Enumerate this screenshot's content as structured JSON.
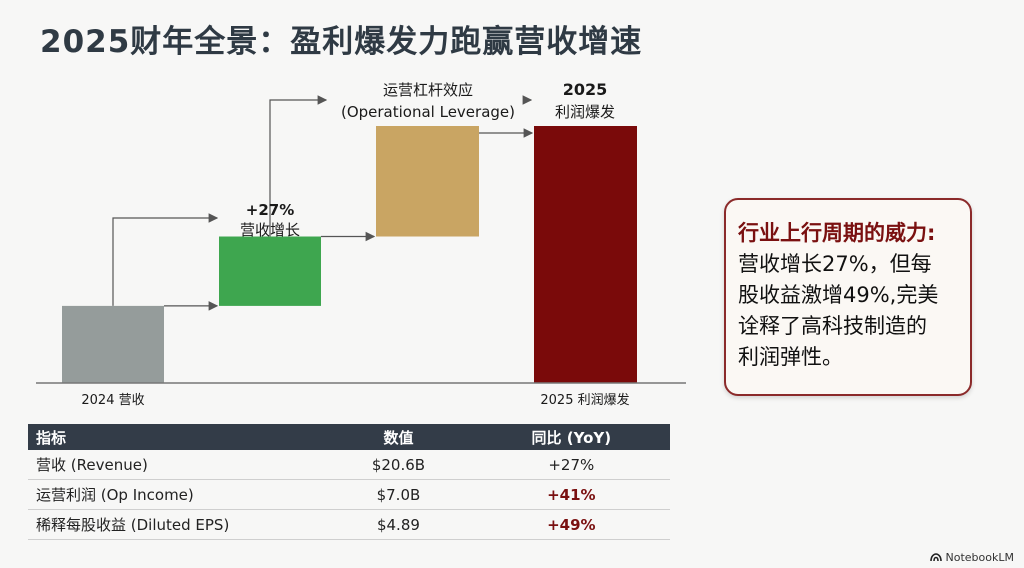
{
  "title": "2025财年全景：盈利爆发力跑赢营收增速",
  "chart_data": {
    "type": "bar",
    "subtype": "waterfall",
    "categories": [
      "2024 营收",
      "营收增长",
      "运营杠杆效应",
      "2025 利润爆发"
    ],
    "bars": [
      {
        "key": "base",
        "label": "2024 营收",
        "start": 0,
        "end": 30,
        "color": "#959c9b"
      },
      {
        "key": "growth",
        "label": "营收增长",
        "start": 30,
        "end": 57,
        "color": "#3ea64f"
      },
      {
        "key": "leverage",
        "label": "运营杠杆效应",
        "start": 57,
        "end": 100,
        "color": "#c9a563"
      },
      {
        "key": "profit",
        "label": "2025 利润爆发",
        "start": 0,
        "end": 100,
        "color": "#7a0a0a"
      }
    ],
    "annotations": {
      "growth_pct": "+27%",
      "growth_label": "营收增长",
      "leverage_label_cn": "运营杠杆效应",
      "leverage_label_en": "(Operational Leverage)",
      "profit_year": "2025",
      "profit_label": "利润爆发"
    },
    "axis_labels": [
      "2024 营收",
      "2025 利润爆发"
    ],
    "ylabel": "",
    "grid": false
  },
  "callout": {
    "heading": "行业上行周期的威力:",
    "lines": [
      "营收增长27%，但每",
      "股收益激增49%,完美",
      "诠释了高科技制造的",
      "利润弹性。"
    ]
  },
  "table": {
    "headers": [
      "指标",
      "数值",
      "同比 (YoY)"
    ],
    "rows": [
      {
        "metric": "营收 (Revenue)",
        "value": "$20.6B",
        "yoy": "+27%",
        "highlight": false
      },
      {
        "metric": "运营利润 (Op Income)",
        "value": "$7.0B",
        "yoy": "+41%",
        "highlight": true
      },
      {
        "metric": "稀释每股收益 (Diluted EPS)",
        "value": "$4.89",
        "yoy": "+49%",
        "highlight": true
      }
    ]
  },
  "brand": "NotebookLM",
  "colors": {
    "title": "#2f3a44",
    "accent": "#7a1010",
    "arrow": "#555555",
    "table_header": "#333c48"
  }
}
